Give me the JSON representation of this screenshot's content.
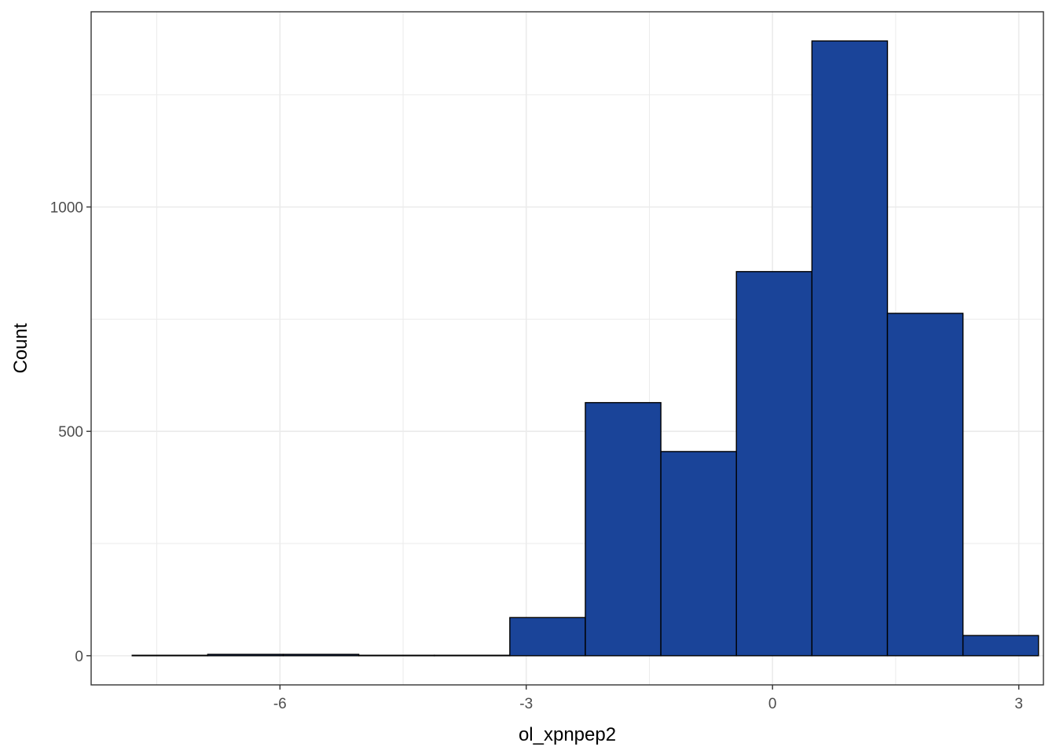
{
  "chart_data": {
    "type": "bar",
    "subtype": "histogram",
    "xlabel": "ol_xpnpep2",
    "ylabel": "Count",
    "xlim": [
      -8.3,
      3.3
    ],
    "ylim": [
      -65,
      1435
    ],
    "x_ticks": [
      -6,
      -3,
      0,
      3
    ],
    "x_tick_labels": [
      "-6",
      "-3",
      "0",
      "3"
    ],
    "y_ticks": [
      0,
      500,
      1000
    ],
    "y_tick_labels": [
      "0",
      "500",
      "1000"
    ],
    "grid": true,
    "bins": [
      {
        "x0": -7.8,
        "x1": -6.88,
        "count": 1
      },
      {
        "x0": -6.88,
        "x1": -5.96,
        "count": 3
      },
      {
        "x0": -5.96,
        "x1": -5.04,
        "count": 3
      },
      {
        "x0": -5.04,
        "x1": -4.12,
        "count": 1
      },
      {
        "x0": -4.12,
        "x1": -3.2,
        "count": 1
      },
      {
        "x0": -3.2,
        "x1": -2.28,
        "count": 85
      },
      {
        "x0": -2.28,
        "x1": -1.36,
        "count": 564
      },
      {
        "x0": -1.36,
        "x1": -0.44,
        "count": 455
      },
      {
        "x0": -0.44,
        "x1": 0.48,
        "count": 856
      },
      {
        "x0": 0.48,
        "x1": 1.4,
        "count": 1370
      },
      {
        "x0": 1.4,
        "x1": 2.32,
        "count": 763
      },
      {
        "x0": 2.32,
        "x1": 3.24,
        "count": 45
      }
    ],
    "colors": {
      "fill": "#1a4499",
      "stroke": "#000000",
      "grid": "#ebebeb",
      "panel_border": "#333333",
      "tick_text": "#4d4d4d"
    }
  }
}
